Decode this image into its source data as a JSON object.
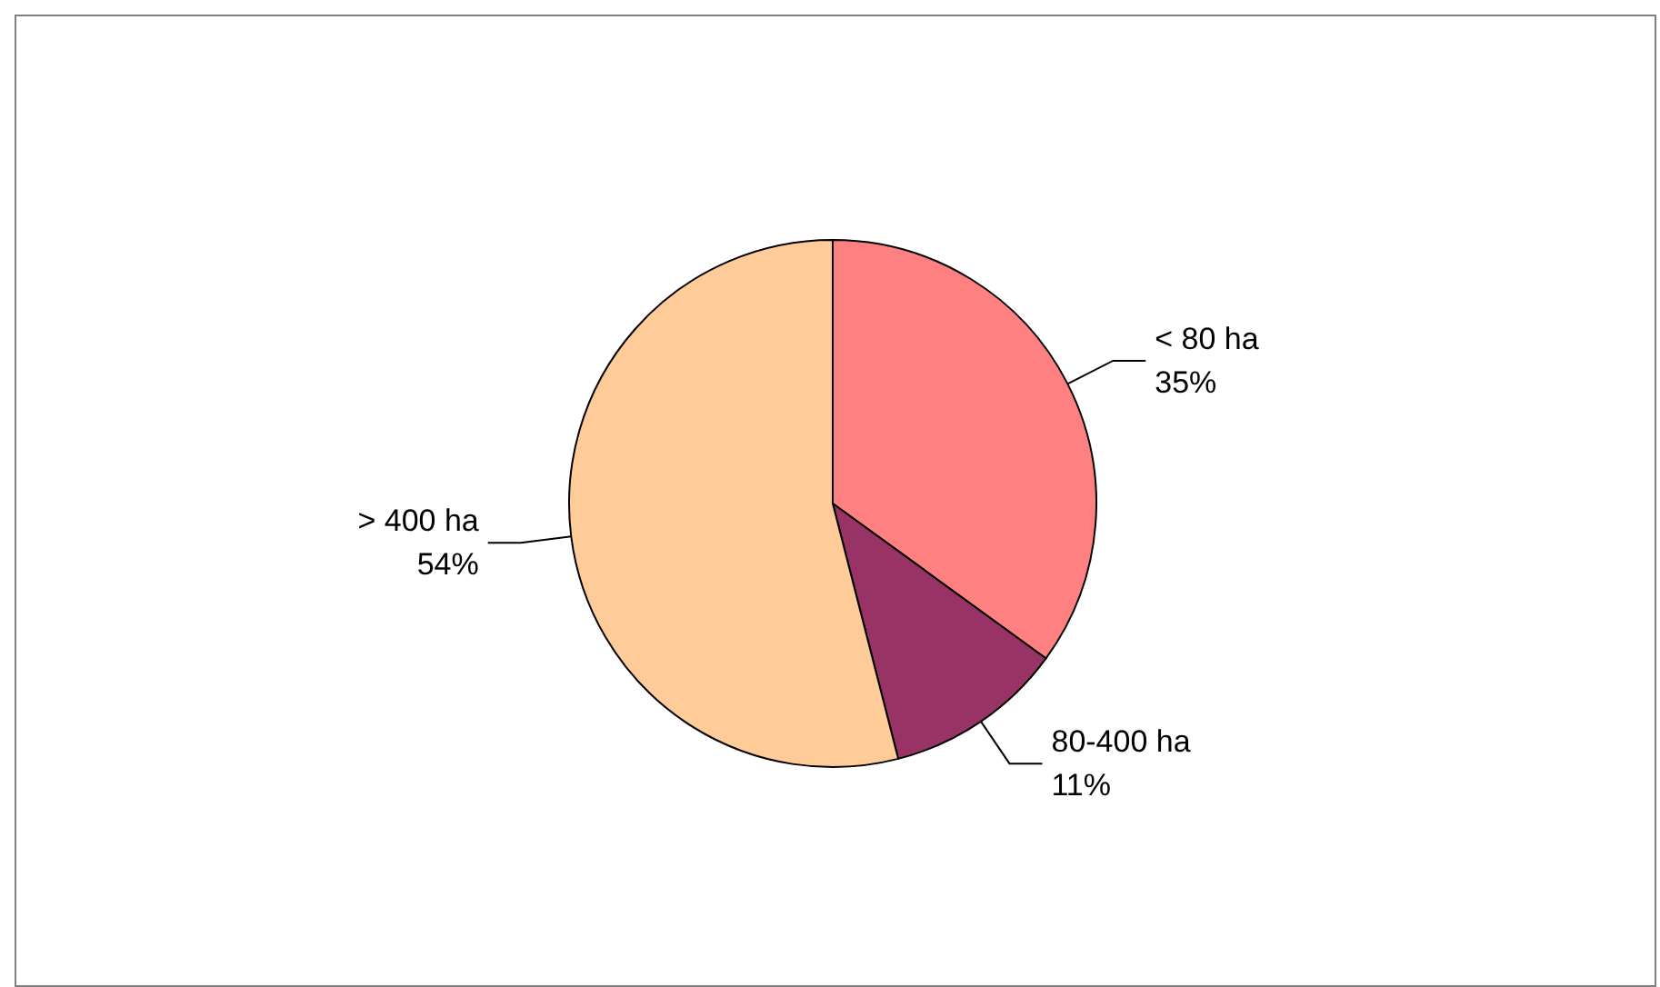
{
  "chart_data": {
    "type": "pie",
    "categories": [
      "< 80 ha",
      "80-400 ha",
      "> 400 ha"
    ],
    "values": [
      35,
      11,
      54
    ],
    "value_labels": [
      "35%",
      "11%",
      "54%"
    ],
    "colors": [
      "#ff8080",
      "#993366",
      "#ffcc99"
    ]
  }
}
